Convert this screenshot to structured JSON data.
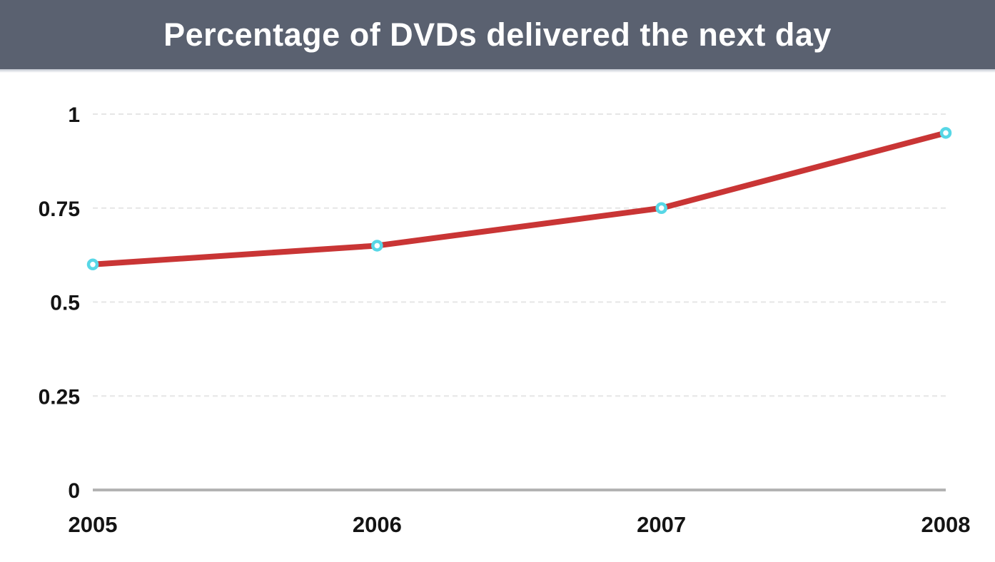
{
  "header": {
    "title": "Percentage of DVDs delivered the next day"
  },
  "chart_data": {
    "type": "line",
    "title": "Percentage of DVDs delivered the next day",
    "categories": [
      "2005",
      "2006",
      "2007",
      "2008"
    ],
    "series": [
      {
        "name": "Percentage of DVDs delivered the next day",
        "values": [
          0.6,
          0.65,
          0.75,
          0.95
        ]
      }
    ],
    "xlabel": "",
    "ylabel": "",
    "ylim": [
      0,
      1
    ],
    "yticks": [
      0,
      0.25,
      0.5,
      0.75,
      1
    ],
    "ytick_labels": [
      "0",
      "0.25",
      "0.5",
      "0.75",
      "1"
    ],
    "grid": true,
    "legend": false,
    "colors": {
      "line": "#c93535",
      "marker_ring": "#57d7e6",
      "marker_fill": "#ffffff",
      "gridline": "#e6e6e6",
      "zero_axis": "#b3b3b3",
      "header_bg": "#5a6170",
      "tick_text": "#141414"
    }
  }
}
